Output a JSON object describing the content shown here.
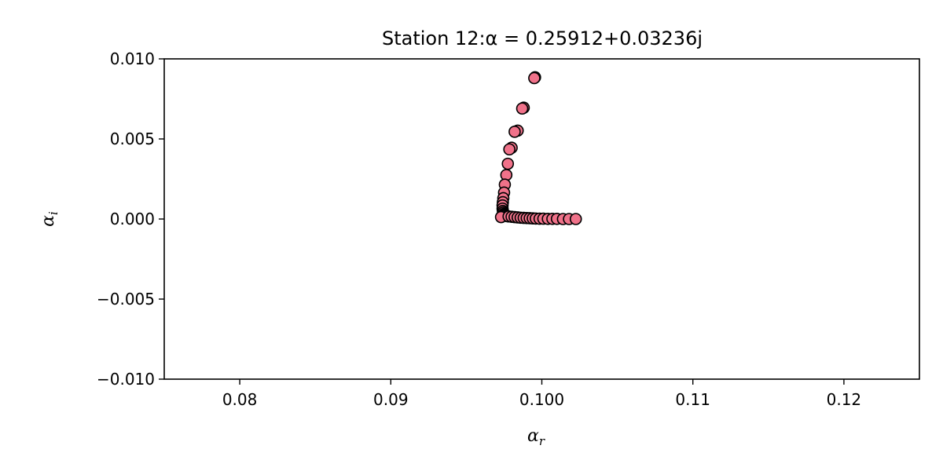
{
  "chart_data": {
    "type": "scatter",
    "title": "Station 12:α = 0.25912+0.03236j",
    "xlabel": "α",
    "xlabel_sub": "r",
    "ylabel": "α",
    "ylabel_sub": "i",
    "xlim": [
      0.075,
      0.125
    ],
    "ylim": [
      -0.01,
      0.01
    ],
    "xticks": [
      0.08,
      0.09,
      0.1,
      0.11,
      0.12
    ],
    "xtick_labels": [
      "0.08",
      "0.09",
      "0.100",
      "0.11",
      "0.12"
    ],
    "yticks": [
      0.01,
      0.005,
      0.0,
      -0.005,
      -0.01
    ],
    "ytick_labels": [
      "0.010",
      "0.005",
      "0.000",
      "−0.005",
      "−0.010"
    ],
    "grid": false,
    "marker_color": "#f0728a",
    "edge_color": "#000000",
    "series": [
      {
        "x": [
          0.09955,
          0.0995,
          0.0988,
          0.0987,
          0.0984,
          0.0982,
          0.098,
          0.09785,
          0.09775,
          0.09765,
          0.09755,
          0.0975,
          0.09745,
          0.09742,
          0.0974,
          0.0974,
          0.09742,
          0.09745,
          0.0975,
          0.09755,
          0.0976,
          0.0977,
          0.0973,
          0.0978,
          0.098,
          0.0982,
          0.0984,
          0.0986,
          0.0988,
          0.099,
          0.0992,
          0.0994,
          0.0996,
          0.09985,
          0.1001,
          0.1004,
          0.1007,
          0.101,
          0.1014,
          0.1018,
          0.10225
        ],
        "y": [
          0.00885,
          0.0088,
          0.00695,
          0.0069,
          0.00552,
          0.00545,
          0.00445,
          0.00435,
          0.00345,
          0.00275,
          0.00215,
          0.00165,
          0.0013,
          0.00105,
          0.00085,
          0.00065,
          0.0005,
          0.0004,
          0.00032,
          0.00026,
          0.00022,
          0.00018,
          0.00012,
          0.00016,
          0.00014,
          0.00012,
          0.0001,
          8e-05,
          7e-05,
          6e-05,
          5e-05,
          4e-05,
          3e-05,
          2e-05,
          2e-05,
          1e-05,
          1e-05,
          1e-05,
          0.0,
          0.0,
          0.0
        ]
      }
    ]
  }
}
